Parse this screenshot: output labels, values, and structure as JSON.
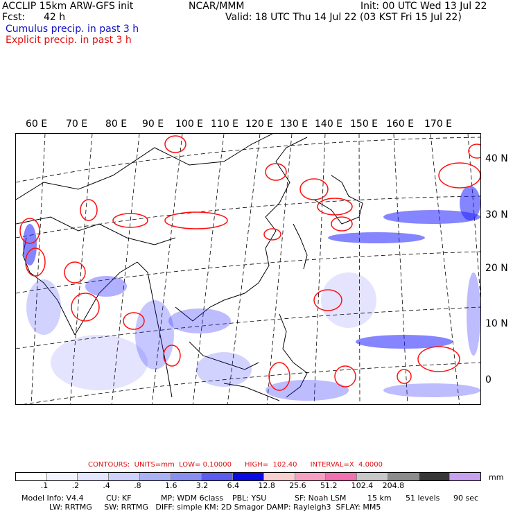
{
  "header": {
    "model_line": "ACCLIP 15km ARW-GFS init",
    "fcst_label": "Fcst:",
    "fcst_value": "42 h",
    "org": "NCAR/MMM",
    "init": "Init: 00 UTC Wed 13 Jul 22",
    "valid": "Valid: 18 UTC Thu 14 Jul 22 (03 KST Fri 15 Jul 22)",
    "cumulus": "Cumulus precip. in past 3 h",
    "explicit": "Explicit precip. in past 3 h"
  },
  "map": {
    "lon_labels": [
      "60 E",
      "70 E",
      "80 E",
      "90 E",
      "100 E",
      "110 E",
      "120 E",
      "130 E",
      "140 E",
      "150 E",
      "160 E",
      "170 E"
    ],
    "lat_labels": [
      "40 N",
      "30 N",
      "20 N",
      "10 N",
      "0"
    ],
    "colors": {
      "cumulus": "#2020ff",
      "explicit": "#ff1010",
      "coast": "#000000",
      "grid": "#000000"
    }
  },
  "contours": {
    "text": "CONTOURS:  UNITS=mm  LOW= 0.10000      HIGH=  102.40      INTERVAL=X  4.0000"
  },
  "legend": {
    "unit": "mm",
    "labels": [
      ".1",
      ".2",
      ".4",
      ".8",
      "1.6",
      "3.2",
      "6.4",
      "12.8",
      "25.6",
      "51.2",
      "102.4",
      "204.8"
    ],
    "colors": [
      "#ffffff",
      "#f4f4ff",
      "#e4e6ff",
      "#cfd3fb",
      "#aab2f5",
      "#8a8ef0",
      "#5c5cf0",
      "#0a0ae6",
      "#f8d0d0",
      "#f5a0c2",
      "#f070b0",
      "#c8c8c8",
      "#8c8c8c",
      "#383838",
      "#c8a0f0"
    ]
  },
  "model_info": {
    "line1": [
      "Model Info: V4.4",
      "CU: KF",
      "MP: WDM 6class",
      "PBL: YSU",
      "SF: Noah LSM",
      "15 km",
      "51 levels",
      "90 sec"
    ],
    "line2": "LW: RRTMG     SW: RRTMG   DIFF: simple KM: 2D Smagor DAMP: Rayleigh3  SFLAY: MM5"
  }
}
